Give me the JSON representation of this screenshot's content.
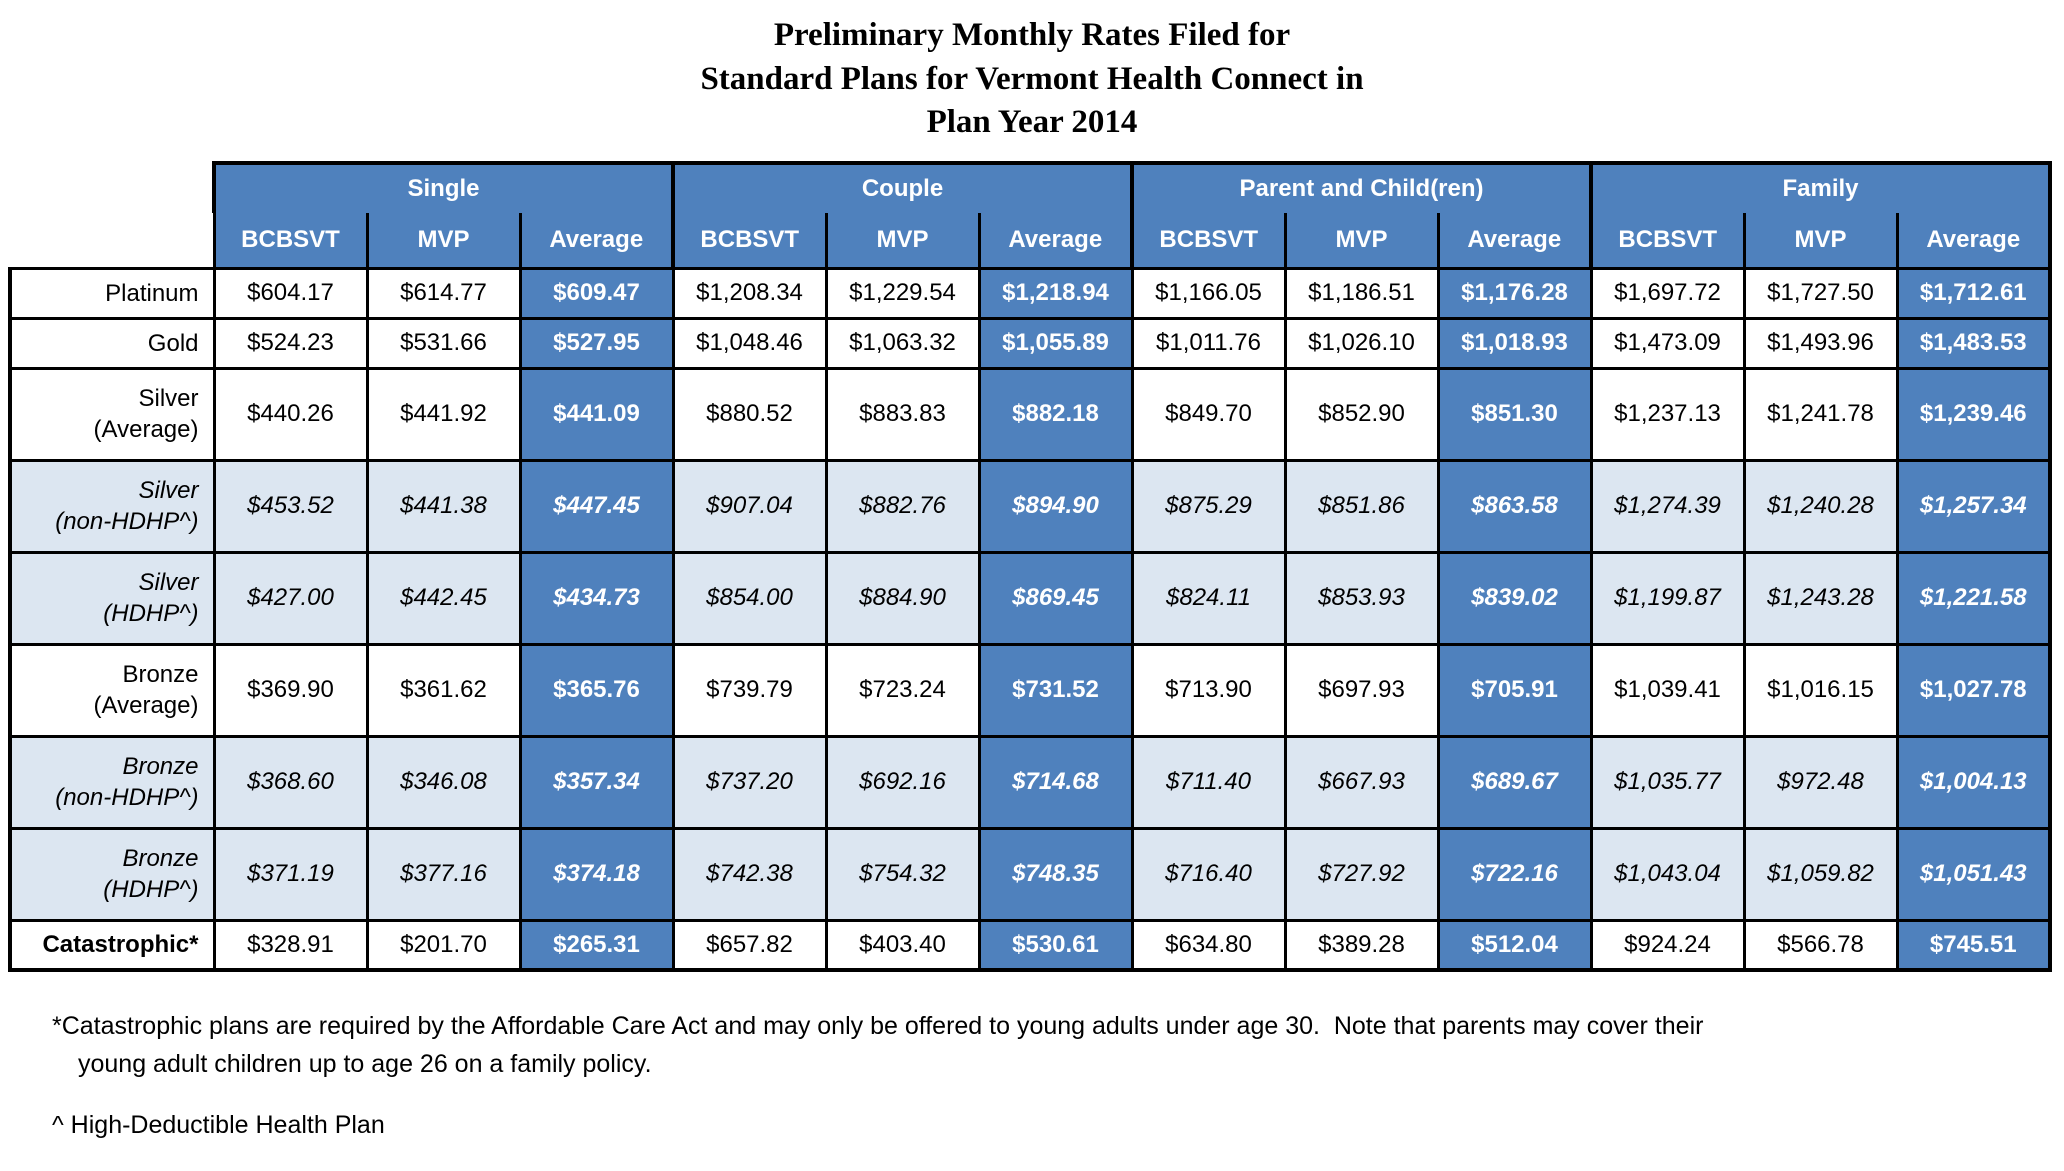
{
  "title": {
    "line1": "Preliminary Monthly Rates Filed for",
    "line2": "Standard Plans for Vermont Health Connect in",
    "line3": "Plan Year 2014"
  },
  "table": {
    "groups": [
      {
        "label": "Single"
      },
      {
        "label": "Couple"
      },
      {
        "label": "Parent and Child(ren)"
      },
      {
        "label": "Family"
      }
    ],
    "subheaders": [
      "BCBSVT",
      "MVP",
      "Average"
    ],
    "rows": [
      {
        "label": "Platinum",
        "style": "plain",
        "values": [
          "$604.17",
          "$614.77",
          "$609.47",
          "$1,208.34",
          "$1,229.54",
          "$1,218.94",
          "$1,166.05",
          "$1,186.51",
          "$1,176.28",
          "$1,697.72",
          "$1,727.50",
          "$1,712.61"
        ]
      },
      {
        "label": "Gold",
        "style": "plain",
        "values": [
          "$524.23",
          "$531.66",
          "$527.95",
          "$1,048.46",
          "$1,063.32",
          "$1,055.89",
          "$1,011.76",
          "$1,026.10",
          "$1,018.93",
          "$1,473.09",
          "$1,493.96",
          "$1,483.53"
        ]
      },
      {
        "label": "Silver\n(Average)",
        "style": "plain",
        "values": [
          "$440.26",
          "$441.92",
          "$441.09",
          "$880.52",
          "$883.83",
          "$882.18",
          "$849.70",
          "$852.90",
          "$851.30",
          "$1,237.13",
          "$1,241.78",
          "$1,239.46"
        ]
      },
      {
        "label": "Silver\n(non-HDHP^)",
        "style": "shaded",
        "values": [
          "$453.52",
          "$441.38",
          "$447.45",
          "$907.04",
          "$882.76",
          "$894.90",
          "$875.29",
          "$851.86",
          "$863.58",
          "$1,274.39",
          "$1,240.28",
          "$1,257.34"
        ]
      },
      {
        "label": "Silver\n(HDHP^)",
        "style": "shaded",
        "values": [
          "$427.00",
          "$442.45",
          "$434.73",
          "$854.00",
          "$884.90",
          "$869.45",
          "$824.11",
          "$853.93",
          "$839.02",
          "$1,199.87",
          "$1,243.28",
          "$1,221.58"
        ]
      },
      {
        "label": "Bronze\n(Average)",
        "style": "plain",
        "values": [
          "$369.90",
          "$361.62",
          "$365.76",
          "$739.79",
          "$723.24",
          "$731.52",
          "$713.90",
          "$697.93",
          "$705.91",
          "$1,039.41",
          "$1,016.15",
          "$1,027.78"
        ]
      },
      {
        "label": "Bronze\n(non-HDHP^)",
        "style": "shaded",
        "values": [
          "$368.60",
          "$346.08",
          "$357.34",
          "$737.20",
          "$692.16",
          "$714.68",
          "$711.40",
          "$667.93",
          "$689.67",
          "$1,035.77",
          "$972.48",
          "$1,004.13"
        ]
      },
      {
        "label": "Bronze\n(HDHP^)",
        "style": "shaded",
        "values": [
          "$371.19",
          "$377.16",
          "$374.18",
          "$742.38",
          "$754.32",
          "$748.35",
          "$716.40",
          "$727.92",
          "$722.16",
          "$1,043.04",
          "$1,059.82",
          "$1,051.43"
        ]
      },
      {
        "label": "Catastrophic*",
        "style": "bold",
        "values": [
          "$328.91",
          "$201.70",
          "$265.31",
          "$657.82",
          "$403.40",
          "$530.61",
          "$634.80",
          "$389.28",
          "$512.04",
          "$924.24",
          "$566.78",
          "$745.51"
        ]
      }
    ]
  },
  "footnotes": {
    "catastrophic": "*Catastrophic plans are required by the Affordable Care Act and may only be offered to young adults under age 30.  Note that parents may cover their young adult children up to age 26 on a family policy.",
    "hdhp": "^ High-Deductible Health Plan"
  },
  "colors": {
    "header_blue": "#4F81BD",
    "shaded_row_blue": "#DCE6F1",
    "border_black": "#000000"
  }
}
